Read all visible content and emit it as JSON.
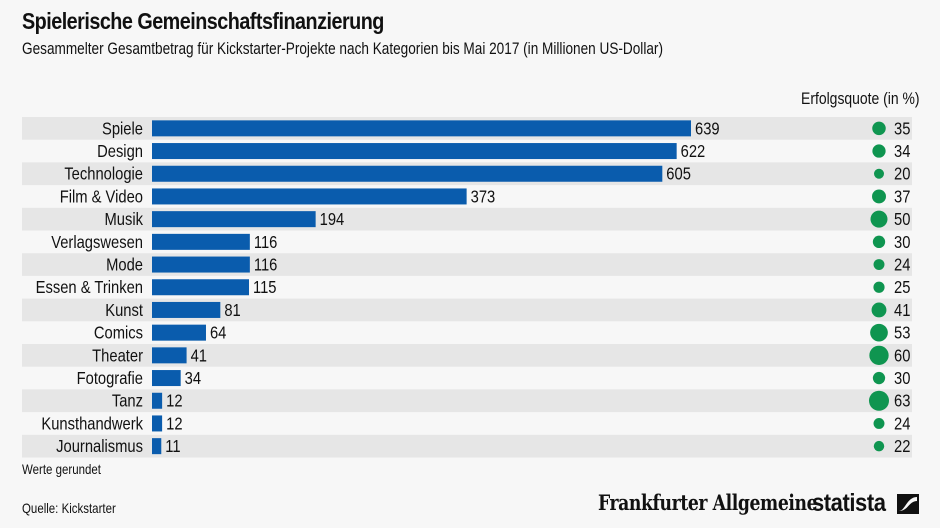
{
  "header": {
    "title": "Spielerische Gemeinschaftsfinanzierung",
    "subtitle": "Gesammelter Gesamtbetrag für Kickstarter-Projekte nach Kategorien bis Mai 2017 (in Millionen US-Dollar)",
    "rate_header": "Erfolgsquote (in %)"
  },
  "footer": {
    "note": "Werte gerundet",
    "source": "Quelle: Kickstarter",
    "partner_logo": "Frankfurter Allgemeine",
    "brand_logo": "statista",
    "brand_icon": "statista-logo-icon"
  },
  "colors": {
    "bar": "#0a5cad",
    "dot": "#0f9550",
    "row_alt": "#e6e6e6",
    "background": "#f7f7f7"
  },
  "chart_data": {
    "type": "bar",
    "orientation": "horizontal",
    "title": "Spielerische Gemeinschaftsfinanzierung",
    "subtitle": "Gesammelter Gesamtbetrag für Kickstarter-Projekte nach Kategorien bis Mai 2017 (in Millionen US-Dollar)",
    "xlabel": "",
    "ylabel": "",
    "xlim": [
      0,
      639
    ],
    "grid": false,
    "categories": [
      "Spiele",
      "Design",
      "Technologie",
      "Film & Video",
      "Musik",
      "Verlagswesen",
      "Mode",
      "Essen & Trinken",
      "Kunst",
      "Comics",
      "Theater",
      "Fotografie",
      "Tanz",
      "Kunsthandwerk",
      "Journalismus"
    ],
    "series": [
      {
        "name": "Gesamtbetrag (Mio. US-Dollar)",
        "values": [
          639,
          622,
          605,
          373,
          194,
          116,
          116,
          115,
          81,
          64,
          41,
          34,
          12,
          12,
          11
        ]
      },
      {
        "name": "Erfolgsquote (in %)",
        "type": "bubble",
        "values": [
          35,
          34,
          20,
          37,
          50,
          30,
          24,
          25,
          41,
          53,
          60,
          30,
          63,
          24,
          22
        ]
      }
    ],
    "annotations": [
      "Werte gerundet"
    ]
  }
}
